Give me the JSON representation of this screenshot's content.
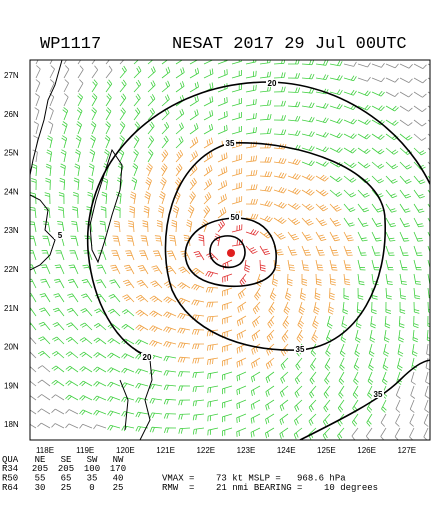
{
  "header": {
    "id": "WP1117",
    "title": "NESAT 2017 29 Jul 00UTC"
  },
  "map": {
    "lat_labels": [
      "27N",
      "26N",
      "25N",
      "24N",
      "23N",
      "22N",
      "21N",
      "20N",
      "19N",
      "18N"
    ],
    "lon_labels": [
      "118E",
      "119E",
      "120E",
      "121E",
      "122E",
      "123E",
      "124E",
      "125E",
      "126E",
      "127E"
    ],
    "contour_labels": [
      20,
      35,
      50,
      35,
      20,
      35,
      5
    ]
  },
  "table": {
    "columns": [
      "QUA",
      "NE",
      "SE",
      "SW",
      "NW"
    ],
    "rows": [
      [
        "R34",
        205,
        205,
        100,
        170
      ],
      [
        "R50",
        55,
        65,
        35,
        40
      ],
      [
        "R64",
        30,
        25,
        0,
        25
      ]
    ]
  },
  "stats": [
    "VMAX =    73 kt MSLP =   968.6 hPa",
    "RMW  =    21 nmi BEARING =    10 degrees"
  ]
}
